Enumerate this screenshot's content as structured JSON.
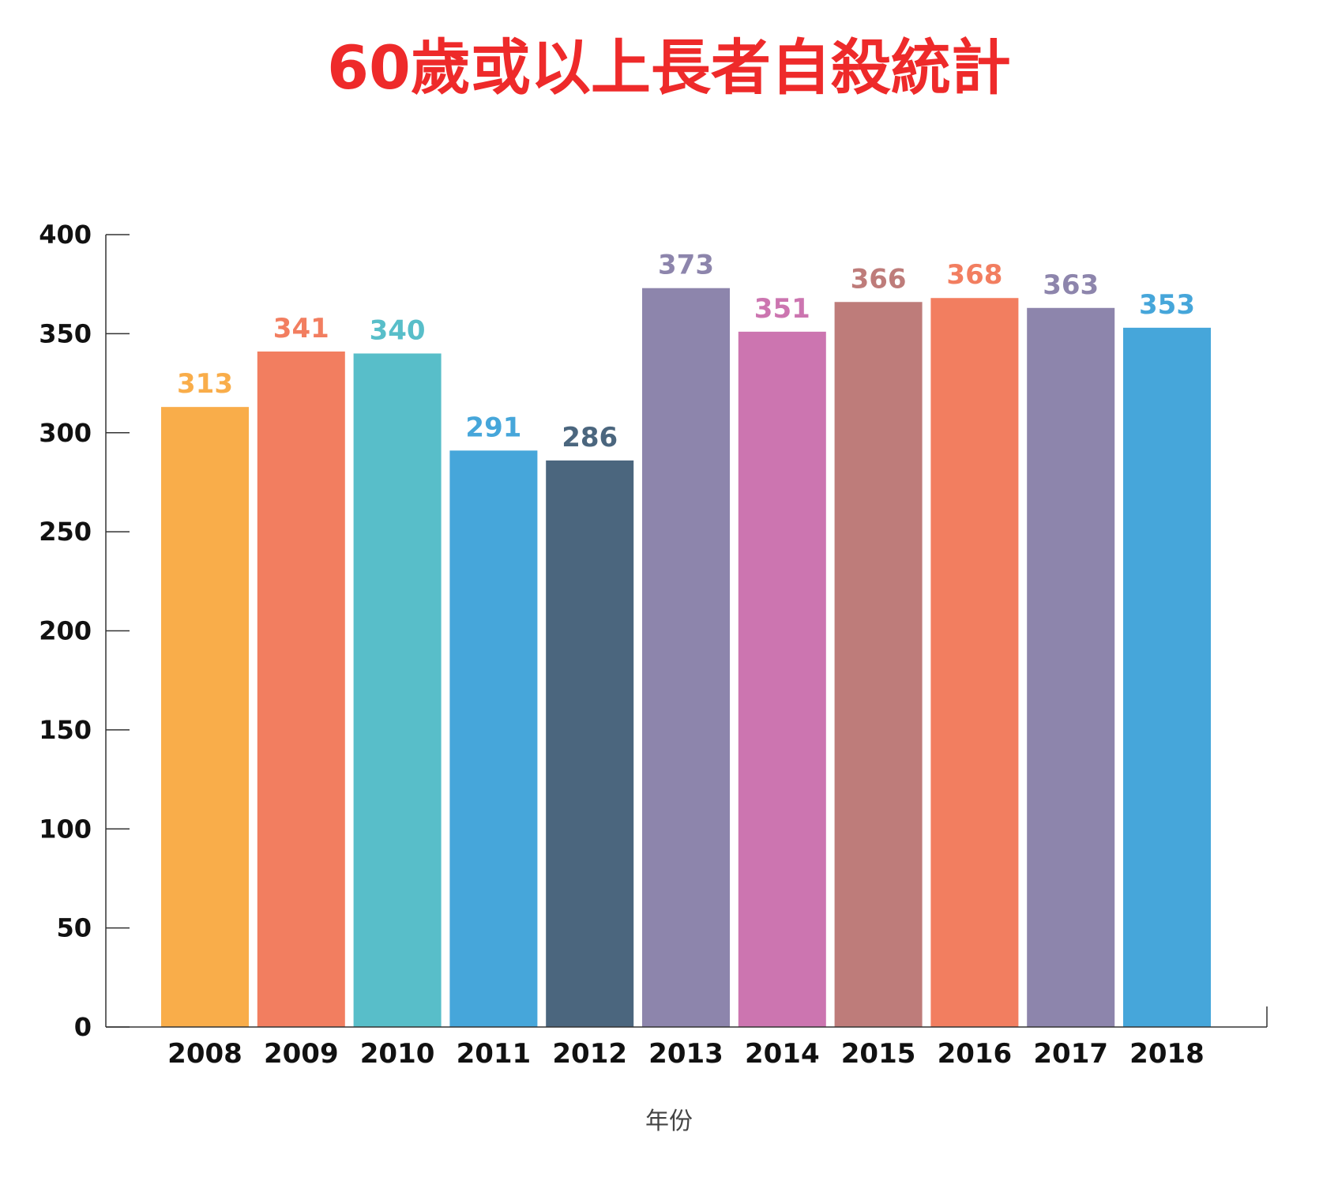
{
  "chart_data": {
    "type": "bar",
    "title": "60歲或以上長者自殺統計",
    "xlabel": "年份",
    "ylabel": "",
    "ylim": [
      0,
      400
    ],
    "yticks": [
      0,
      50,
      100,
      150,
      200,
      250,
      300,
      350,
      400
    ],
    "grid": false,
    "categories": [
      "2008",
      "2009",
      "2010",
      "2011",
      "2012",
      "2013",
      "2014",
      "2015",
      "2016",
      "2017",
      "2018"
    ],
    "values": [
      313,
      341,
      340,
      291,
      286,
      373,
      351,
      366,
      368,
      363,
      353
    ],
    "colors": [
      "#f9ad4a",
      "#f27e60",
      "#58bec9",
      "#46a6da",
      "#4b667e",
      "#8d85ac",
      "#cc75b0",
      "#be7c7a",
      "#f27e60",
      "#8d85ac",
      "#46a6da"
    ]
  }
}
